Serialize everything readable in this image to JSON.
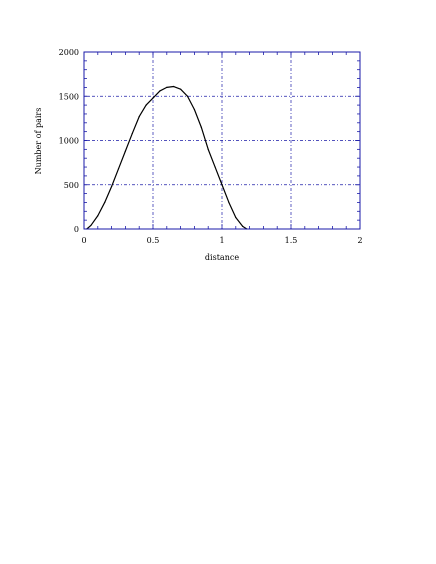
{
  "chart_data": {
    "type": "line",
    "xlabel": "distance",
    "ylabel": "Number of pairs",
    "xlim": [
      0,
      2
    ],
    "ylim": [
      0,
      2000
    ],
    "xticks": [
      0,
      0.5,
      1,
      1.5,
      2
    ],
    "xtick_labels": [
      "0",
      "0.5",
      "1",
      "1.5",
      "2"
    ],
    "yticks": [
      0,
      500,
      1000,
      1500,
      2000
    ],
    "ytick_labels": [
      "0",
      "500",
      "1000",
      "1500",
      "2000"
    ],
    "grid": true,
    "colors": {
      "frame": "#1a1aa8",
      "grid": "#1a1aa8",
      "series": "#000000"
    },
    "series": [
      {
        "x": [
          0.02,
          0.05,
          0.1,
          0.15,
          0.2,
          0.25,
          0.3,
          0.35,
          0.4,
          0.45,
          0.5,
          0.55,
          0.6,
          0.65,
          0.7,
          0.75,
          0.8,
          0.85,
          0.9,
          0.95,
          1.0,
          1.05,
          1.1,
          1.15,
          1.18
        ],
        "y": [
          0,
          40,
          150,
          300,
          480,
          680,
          880,
          1080,
          1270,
          1400,
          1480,
          1560,
          1600,
          1610,
          1580,
          1500,
          1350,
          1150,
          900,
          700,
          500,
          300,
          130,
          30,
          0
        ]
      }
    ]
  }
}
